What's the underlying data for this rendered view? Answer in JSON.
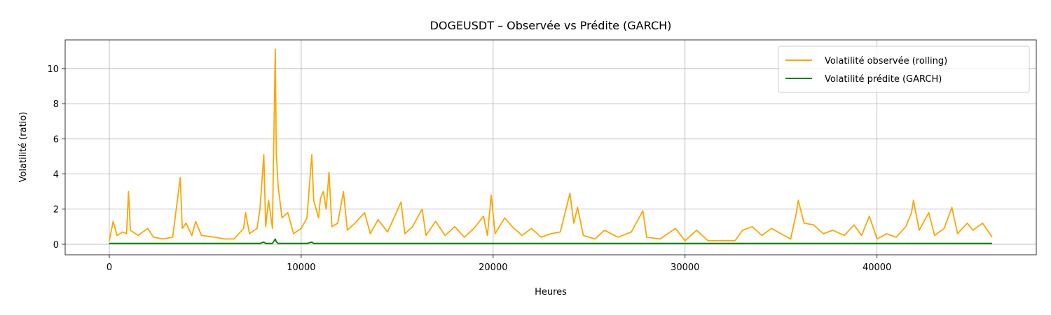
{
  "chart_data": {
    "type": "line",
    "title": "DOGEUSDT – Observée vs Prédite (GARCH)",
    "xlabel": "Heures",
    "ylabel": "Volatilité (ratio)",
    "x": [
      0,
      200,
      400,
      700,
      900,
      1000,
      1100,
      1500,
      2000,
      2300,
      2800,
      3300,
      3700,
      3800,
      4000,
      4300,
      4500,
      4800,
      5500,
      6000,
      6500,
      7000,
      7100,
      7300,
      7700,
      7850,
      8050,
      8150,
      8300,
      8500,
      8650,
      8700,
      8800,
      9000,
      9300,
      9600,
      10000,
      10300,
      10550,
      10650,
      10900,
      11000,
      11150,
      11300,
      11450,
      11600,
      11900,
      12200,
      12400,
      12800,
      13300,
      13600,
      14000,
      14500,
      15200,
      15400,
      15800,
      16300,
      16500,
      17000,
      17500,
      18000,
      18500,
      19000,
      19500,
      19700,
      19900,
      20100,
      20600,
      21000,
      21500,
      22000,
      22500,
      23000,
      23500,
      24000,
      24200,
      24400,
      24700,
      25300,
      25800,
      26500,
      27200,
      27800,
      28000,
      28700,
      29500,
      30000,
      30600,
      31200,
      32000,
      32600,
      33000,
      33500,
      34000,
      34500,
      35000,
      35500,
      35800,
      35900,
      36200,
      36700,
      37200,
      37700,
      38300,
      38800,
      39200,
      39600,
      40000,
      40500,
      41000,
      41500,
      41800,
      41900,
      42200,
      42700,
      43000,
      43500,
      43900,
      44200,
      44700,
      45000,
      45500,
      46000
    ],
    "series": [
      {
        "name": "Volatilité observée (rolling)",
        "color": "#ffa500",
        "values": [
          0.2,
          1.3,
          0.5,
          0.7,
          0.6,
          3.0,
          0.8,
          0.5,
          0.9,
          0.4,
          0.3,
          0.4,
          3.8,
          0.9,
          1.2,
          0.5,
          1.3,
          0.5,
          0.4,
          0.3,
          0.3,
          0.9,
          1.8,
          0.6,
          0.9,
          2.0,
          5.1,
          1.0,
          2.5,
          0.9,
          11.1,
          5.2,
          3.3,
          1.5,
          1.8,
          0.6,
          0.9,
          1.5,
          5.1,
          2.5,
          1.5,
          2.6,
          3.0,
          2.0,
          4.1,
          1.0,
          1.2,
          3.0,
          0.8,
          1.2,
          1.8,
          0.6,
          1.4,
          0.7,
          2.4,
          0.6,
          1.0,
          2.0,
          0.5,
          1.3,
          0.5,
          1.0,
          0.4,
          0.9,
          1.6,
          0.5,
          2.8,
          0.6,
          1.5,
          1.0,
          0.5,
          0.9,
          0.4,
          0.6,
          0.7,
          2.9,
          1.2,
          2.1,
          0.5,
          0.3,
          0.8,
          0.4,
          0.7,
          1.9,
          0.4,
          0.3,
          0.9,
          0.2,
          0.8,
          0.2,
          0.2,
          0.2,
          0.8,
          1.0,
          0.5,
          0.9,
          0.6,
          0.3,
          1.8,
          2.5,
          1.2,
          1.1,
          0.6,
          0.8,
          0.5,
          1.1,
          0.5,
          1.6,
          0.3,
          0.6,
          0.4,
          1.0,
          1.8,
          2.5,
          0.8,
          1.8,
          0.5,
          0.9,
          2.1,
          0.6,
          1.2,
          0.8,
          1.2,
          0.4
        ]
      },
      {
        "name": "Volatilité prédite (GARCH)",
        "color": "#008000",
        "values": [
          0.05,
          0.05,
          0.05,
          0.05,
          0.05,
          0.05,
          0.05,
          0.05,
          0.05,
          0.05,
          0.05,
          0.05,
          0.05,
          0.05,
          0.05,
          0.05,
          0.05,
          0.05,
          0.05,
          0.05,
          0.05,
          0.05,
          0.05,
          0.05,
          0.05,
          0.05,
          0.12,
          0.05,
          0.05,
          0.05,
          0.3,
          0.15,
          0.05,
          0.05,
          0.05,
          0.05,
          0.05,
          0.05,
          0.12,
          0.05,
          0.05,
          0.05,
          0.05,
          0.05,
          0.05,
          0.05,
          0.05,
          0.05,
          0.05,
          0.05,
          0.05,
          0.05,
          0.05,
          0.05,
          0.05,
          0.05,
          0.05,
          0.05,
          0.05,
          0.05,
          0.05,
          0.05,
          0.05,
          0.05,
          0.05,
          0.05,
          0.05,
          0.05,
          0.05,
          0.05,
          0.05,
          0.05,
          0.05,
          0.05,
          0.05,
          0.05,
          0.05,
          0.05,
          0.05,
          0.05,
          0.05,
          0.05,
          0.05,
          0.05,
          0.05,
          0.05,
          0.05,
          0.05,
          0.05,
          0.05,
          0.05,
          0.05,
          0.05,
          0.05,
          0.05,
          0.05,
          0.05,
          0.05,
          0.05,
          0.05,
          0.05,
          0.05,
          0.05,
          0.05,
          0.05,
          0.05,
          0.05,
          0.05,
          0.05,
          0.05,
          0.05,
          0.05,
          0.05,
          0.05,
          0.05,
          0.05,
          0.05,
          0.05,
          0.05,
          0.05,
          0.05,
          0.05,
          0.05,
          0.05
        ]
      }
    ],
    "xlim": [
      -2300,
      48300
    ],
    "xticks": [
      0,
      10000,
      20000,
      30000,
      40000
    ],
    "ylim": [
      -0.6,
      11.63
    ],
    "yticks": [
      0,
      2,
      4,
      6,
      8,
      10
    ],
    "grid": true,
    "legend": "upper right"
  }
}
